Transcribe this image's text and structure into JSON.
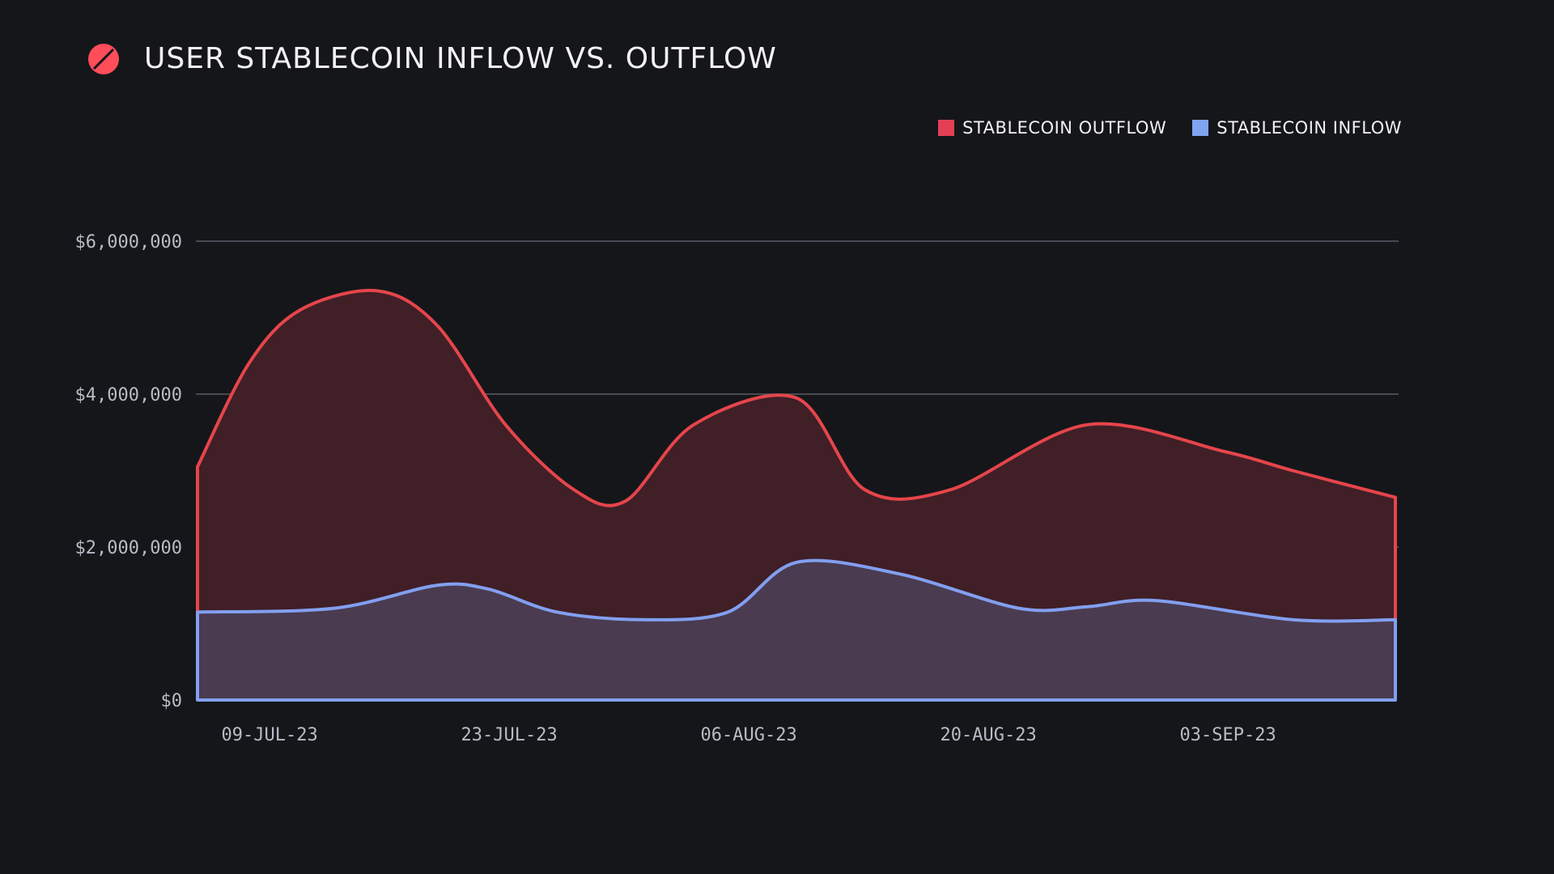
{
  "title": "USER STABLECOIN INFLOW VS. OUTFLOW",
  "logo_icon": "red-slashed-circle-icon",
  "colors": {
    "background": "#15161a",
    "outflow_line": "#e5454b",
    "outflow_fill": "#401f27",
    "inflow_line": "#829ff0",
    "inflow_fill": "#4a3b50",
    "grid": "#5a5c64",
    "logo": "#ff4d5a"
  },
  "legend": {
    "outflow_label": "STABLECOIN OUTFLOW",
    "inflow_label": "STABLECOIN INFLOW",
    "outflow_color": "#e43f55",
    "inflow_color": "#80a4ef"
  },
  "chart_data": {
    "type": "area",
    "title": "USER STABLECOIN INFLOW VS. OUTFLOW",
    "xlabel": "",
    "ylabel": "",
    "ylim": [
      0,
      6000000
    ],
    "xlim": [
      0,
      70
    ],
    "y_ticks": [
      {
        "value": 0,
        "label": "$0"
      },
      {
        "value": 2000000,
        "label": "$2,000,000"
      },
      {
        "value": 4000000,
        "label": "$4,000,000"
      },
      {
        "value": 6000000,
        "label": "$6,000,000"
      }
    ],
    "x_ticks": [
      {
        "day": 1,
        "label": "09-JUL-23"
      },
      {
        "day": 15,
        "label": "23-JUL-23"
      },
      {
        "day": 29,
        "label": "06-AUG-23"
      },
      {
        "day": 43,
        "label": "20-AUG-23"
      },
      {
        "day": 57,
        "label": "03-SEP-23"
      }
    ],
    "grid": true,
    "legend_position": "top-right",
    "series": [
      {
        "name": "STABLECOIN OUTFLOW",
        "x": [
          0,
          3,
          6,
          10.5,
          14,
          18,
          22,
          25,
          29,
          35,
          39,
          44,
          52,
          60,
          64,
          70
        ],
        "values": [
          3050000,
          4400000,
          5100000,
          5350000,
          4900000,
          3600000,
          2750000,
          2600000,
          3600000,
          3950000,
          2750000,
          2750000,
          3600000,
          3250000,
          3000000,
          2650000
        ]
      },
      {
        "name": "STABLECOIN INFLOW",
        "x": [
          0,
          8,
          14,
          17,
          21,
          26,
          31,
          35,
          41,
          48,
          52,
          56,
          64,
          70
        ],
        "values": [
          1150000,
          1200000,
          1500000,
          1450000,
          1150000,
          1050000,
          1150000,
          1800000,
          1650000,
          1200000,
          1220000,
          1300000,
          1050000,
          1050000
        ]
      }
    ]
  }
}
